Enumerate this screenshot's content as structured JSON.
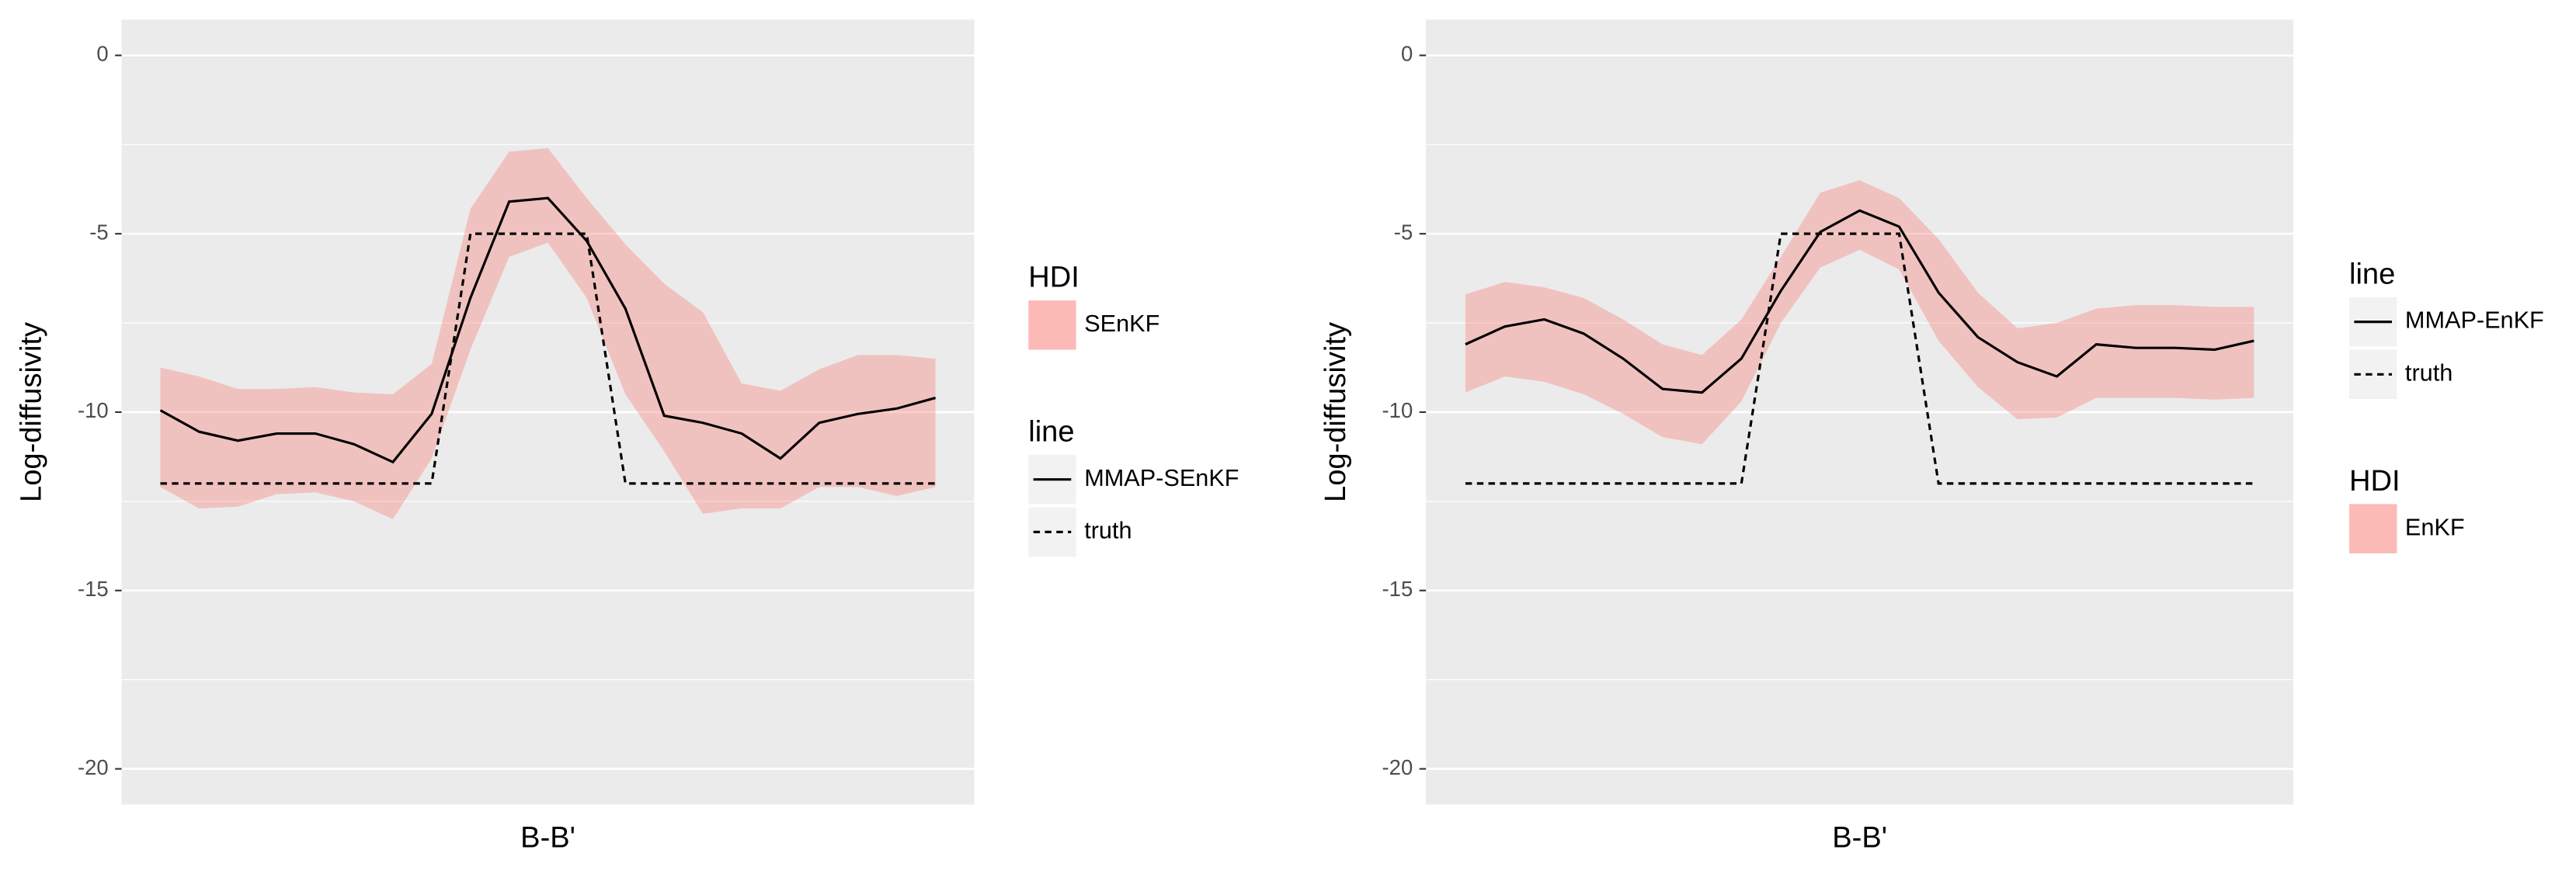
{
  "chart_data": [
    {
      "type": "line",
      "xlabel": "B-B'",
      "ylabel": "Log-diffusivity",
      "x": [
        1,
        2,
        3,
        4,
        5,
        6,
        7,
        8,
        9,
        10,
        11,
        12,
        13,
        14,
        15,
        16,
        17,
        18,
        19,
        20,
        21
      ],
      "xlim": [
        0,
        22
      ],
      "ylim": [
        -21,
        1
      ],
      "yticks": [
        0,
        -5,
        -10,
        -15,
        -20
      ],
      "grid": true,
      "groups": [
        {
          "title": "HDI",
          "series": [
            {
              "name": "SEnKF",
              "type": "band",
              "color": "#f8766d",
              "alpha": 0.35,
              "upper": [
                -8.75,
                -9.0,
                -9.35,
                -9.35,
                -9.3,
                -9.45,
                -9.5,
                -8.65,
                -4.3,
                -2.7,
                -2.6,
                -4.0,
                -5.3,
                -6.4,
                -7.2,
                -9.2,
                -9.4,
                -8.8,
                -8.4,
                -8.4,
                -8.5
              ],
              "lower": [
                -12.1,
                -12.7,
                -12.65,
                -12.3,
                -12.25,
                -12.5,
                -13.0,
                -11.3,
                -8.25,
                -5.65,
                -5.25,
                -6.8,
                -9.5,
                -11.1,
                -12.85,
                -12.7,
                -12.7,
                -12.1,
                -12.1,
                -12.35,
                -12.1
              ]
            }
          ]
        },
        {
          "title": "line",
          "series": [
            {
              "name": "MMAP-SEnKF",
              "dash": "solid",
              "color": "#000000",
              "values": [
                -9.95,
                -10.55,
                -10.8,
                -10.6,
                -10.6,
                -10.9,
                -11.4,
                -10.05,
                -6.8,
                -4.1,
                -4.0,
                -5.2,
                -7.1,
                -10.1,
                -10.3,
                -10.6,
                -11.3,
                -10.3,
                -10.05,
                -9.9,
                -9.6
              ]
            },
            {
              "name": "truth",
              "dash": "dashed",
              "color": "#000000",
              "values": [
                -12,
                -12,
                -12,
                -12,
                -12,
                -12,
                -12,
                -12,
                -5,
                -5,
                -5,
                -5,
                -12,
                -12,
                -12,
                -12,
                -12,
                -12,
                -12,
                -12,
                -12
              ]
            }
          ]
        }
      ]
    },
    {
      "type": "line",
      "xlabel": "B-B'",
      "ylabel": "Log-diffusivity",
      "x": [
        1,
        2,
        3,
        4,
        5,
        6,
        7,
        8,
        9,
        10,
        11,
        12,
        13,
        14,
        15,
        16,
        17,
        18,
        19,
        20,
        21
      ],
      "xlim": [
        0,
        22
      ],
      "ylim": [
        -21,
        1
      ],
      "yticks": [
        0,
        -5,
        -10,
        -15,
        -20
      ],
      "grid": true,
      "groups": [
        {
          "title": "line",
          "series": [
            {
              "name": "MMAP-EnKF",
              "dash": "solid",
              "color": "#000000",
              "values": [
                -8.1,
                -7.6,
                -7.4,
                -7.8,
                -8.5,
                -9.35,
                -9.45,
                -8.5,
                -6.6,
                -4.95,
                -4.35,
                -4.8,
                -6.65,
                -7.9,
                -8.6,
                -9.0,
                -8.1,
                -8.2,
                -8.2,
                -8.25,
                -8.0
              ]
            },
            {
              "name": "truth",
              "dash": "dashed",
              "color": "#000000",
              "values": [
                -12,
                -12,
                -12,
                -12,
                -12,
                -12,
                -12,
                -12,
                -5,
                -5,
                -5,
                -5,
                -12,
                -12,
                -12,
                -12,
                -12,
                -12,
                -12,
                -12,
                -12
              ]
            }
          ]
        },
        {
          "title": "HDI",
          "series": [
            {
              "name": "EnKF",
              "type": "band",
              "color": "#f8766d",
              "alpha": 0.35,
              "upper": [
                -6.7,
                -6.35,
                -6.5,
                -6.8,
                -7.4,
                -8.1,
                -8.4,
                -7.4,
                -5.65,
                -3.85,
                -3.5,
                -4.0,
                -5.15,
                -6.65,
                -7.65,
                -7.5,
                -7.1,
                -7.0,
                -7.0,
                -7.05,
                -7.05
              ],
              "lower": [
                -9.45,
                -9.0,
                -9.15,
                -9.5,
                -10.05,
                -10.7,
                -10.9,
                -9.7,
                -7.5,
                -5.95,
                -5.45,
                -6.0,
                -8.0,
                -9.3,
                -10.2,
                -10.15,
                -9.6,
                -9.6,
                -9.6,
                -9.65,
                -9.6
              ]
            }
          ]
        }
      ]
    }
  ]
}
